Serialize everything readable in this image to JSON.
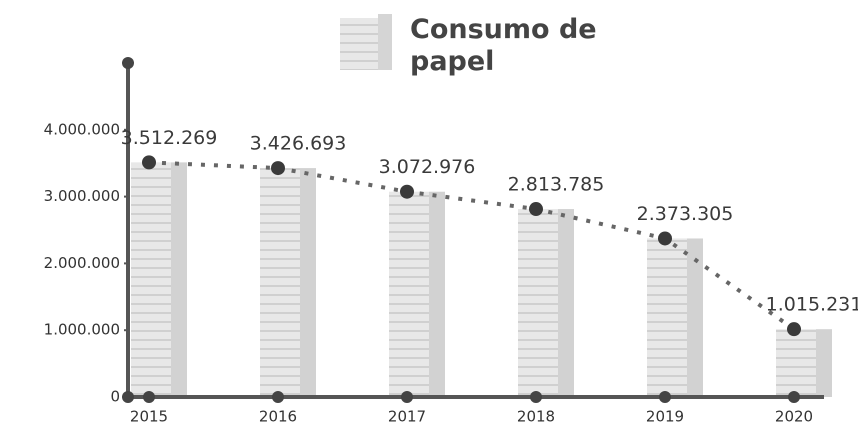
{
  "chart_data": {
    "type": "bar",
    "title": "Consumo de papel",
    "categories": [
      "2015",
      "2016",
      "2017",
      "2018",
      "2019",
      "2020"
    ],
    "values": [
      3512269,
      3426693,
      3072976,
      2813785,
      2373305,
      1015231
    ],
    "value_labels": [
      "3.512.269",
      "3.426.693",
      "3.072.976",
      "2.813.785",
      "2.373.305",
      "1.015.231"
    ],
    "color": "#e6e6e6",
    "line_color": "#666666",
    "marker_color": "#3a3a3a",
    "ylim": [
      0,
      5000000
    ],
    "yticks": [
      0,
      {
        "value": 1000000,
        "label": "1.000.000"
      },
      {
        "value": 2000000,
        "label": "2.000.000"
      },
      {
        "value": 3000000,
        "label": "3.000.000"
      },
      {
        "value": 4000000,
        "label": "4.000.000"
      }
    ],
    "grid": false
  }
}
